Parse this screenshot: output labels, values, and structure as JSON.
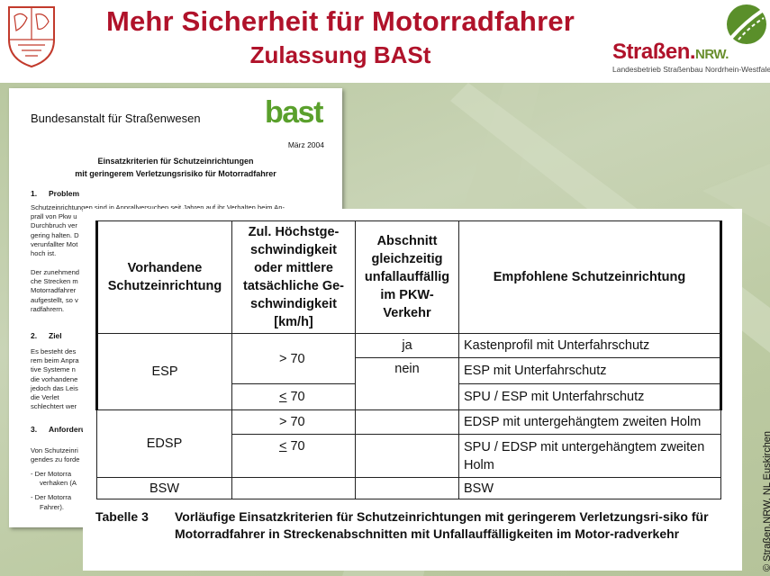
{
  "header": {
    "title": "Mehr Sicherheit für Motorradfahrer",
    "subtitle": "Zulassung BASt",
    "logo_brand": "Straßen.",
    "logo_nrw": "NRW.",
    "logo_subtext": "Landesbetrieb Straßenbau Nordrhein-Westfalen",
    "colors": {
      "title": "#b0122a",
      "brand_green": "#6a8f2e"
    }
  },
  "document": {
    "organization": "Bundesanstalt für Straßenwesen",
    "logo": "bast",
    "date": "März 2004",
    "title_line1": "Einsatzkriterien für Schutzeinrichtungen",
    "title_line2": "mit geringerem Verletzungsrisiko für Motorradfahrer",
    "sections": [
      {
        "num": "1.",
        "heading": "Problem"
      },
      {
        "num": "2.",
        "heading": "Ziel"
      },
      {
        "num": "3.",
        "heading": "Anforderungen"
      }
    ],
    "para1": [
      "Schutzeinrichtungen sind in Anprallversuchen seit Jahren auf ihr Verhalten beim An-",
      "prall von Pkw u",
      "Durchbruch ver",
      "gering halten. D",
      "verunfallter Mot",
      "hoch ist."
    ],
    "para2": [
      "Der zunehmend",
      "che Strecken m",
      "Motorradfahrer",
      "aufgestellt, so v",
      "radfahrern."
    ],
    "para3": [
      "Es besteht des",
      "rem beim Anpra",
      "tive Systeme n",
      "die vorhandene",
      "jedoch das Leis",
      "die Verlet",
      "schlechtert wer"
    ],
    "para4": [
      "Von Schutzeinri",
      "gendes zu forde"
    ],
    "list": [
      "- Der Motorra",
      "verhaken (A",
      "- Der Motorra",
      "Fahrer)."
    ]
  },
  "table": {
    "headers": [
      "Vorhandene Schutzeinrichtung",
      "Zul. Höchstge-schwindigkeit oder mittlere tatsächliche Ge-schwindigkeit [km/h]",
      "Abschnitt gleichzeitig unfallauffällig im PKW-Verkehr",
      "Empfohlene Schutzeinrichtung"
    ],
    "rows": [
      {
        "device": "ESP",
        "speed": "> 70",
        "accident": "ja",
        "recommended": "Kastenprofil mit Unterfahrschutz"
      },
      {
        "device": "",
        "speed": "",
        "accident": "nein",
        "recommended": "ESP mit Unterfahrschutz"
      },
      {
        "device": "",
        "speed_op": "<",
        "speed_val": " 70",
        "accident": "",
        "recommended": "SPU / ESP mit Unterfahrschutz"
      },
      {
        "device": "EDSP",
        "speed": "> 70",
        "accident": "",
        "recommended": "EDSP mit untergehängtem zweiten Holm"
      },
      {
        "device": "",
        "speed_op": "<",
        "speed_val": " 70",
        "accident": "",
        "recommended": "SPU / EDSP mit untergehängtem zweiten Holm"
      },
      {
        "device": "BSW",
        "speed": "",
        "accident": "",
        "recommended": "BSW"
      }
    ],
    "caption_label": "Tabelle 3",
    "caption_text": "Vorläufige Einsatzkriterien für Schutzeinrichtungen mit geringerem Verletzungsri-siko für Motorradfahrer in Streckenabschnitten mit Unfallauffälligkeiten im Motor-radverkehr"
  },
  "copyright": "© Straßen.NRW, NL Euskirchen"
}
